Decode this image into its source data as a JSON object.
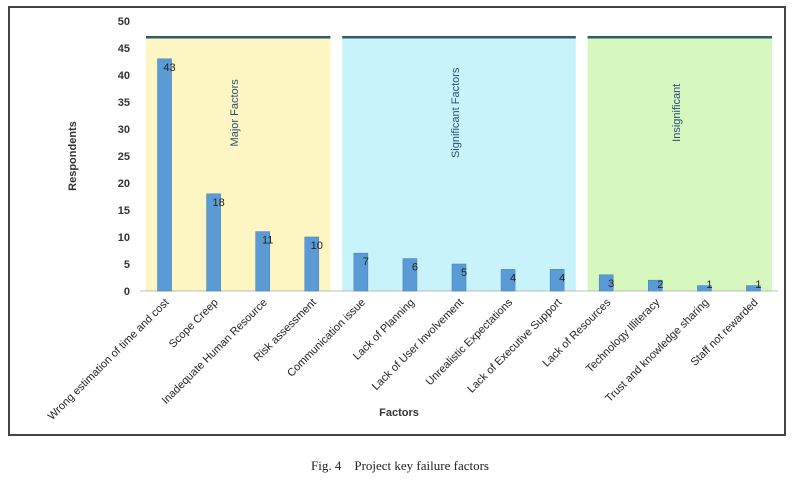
{
  "chart_data": {
    "type": "bar",
    "xlabel": "Factors",
    "ylabel": "Respondents",
    "ylim": [
      0,
      50
    ],
    "yticks": [
      0,
      5,
      10,
      15,
      20,
      25,
      30,
      35,
      40,
      45,
      50
    ],
    "categories": [
      "Wrong estimation of time and cost",
      "Scope Creep",
      "Inadequate Human Resource",
      "Risk assessment",
      "Communication issue",
      "Lack of Planning",
      "Lack of User Involvement",
      "Unrealistic Expectations",
      "Lack of Executive Support",
      "Lack of Resources",
      "Technology Illiteracy",
      "Trust and knowledge sharing",
      "Staff not rewarded"
    ],
    "values": [
      43,
      18,
      11,
      10,
      7,
      6,
      5,
      4,
      4,
      3,
      2,
      1,
      1
    ],
    "bar_color": "#5b9bd5",
    "groups": [
      {
        "label": "Major Factors",
        "first": 0,
        "last": 3,
        "color": "#fdf6c3"
      },
      {
        "label": "Significant Factors",
        "first": 4,
        "last": 8,
        "color": "#c8f3fb"
      },
      {
        "label": "Insignificant",
        "first": 9,
        "last": 12,
        "color": "#d6f7bd"
      }
    ],
    "group_line_value": 47,
    "group_line_color": "#2e5c6e",
    "grid": false,
    "legend": "none"
  },
  "caption": {
    "label": "Fig. 4",
    "text": "Project key failure factors"
  }
}
